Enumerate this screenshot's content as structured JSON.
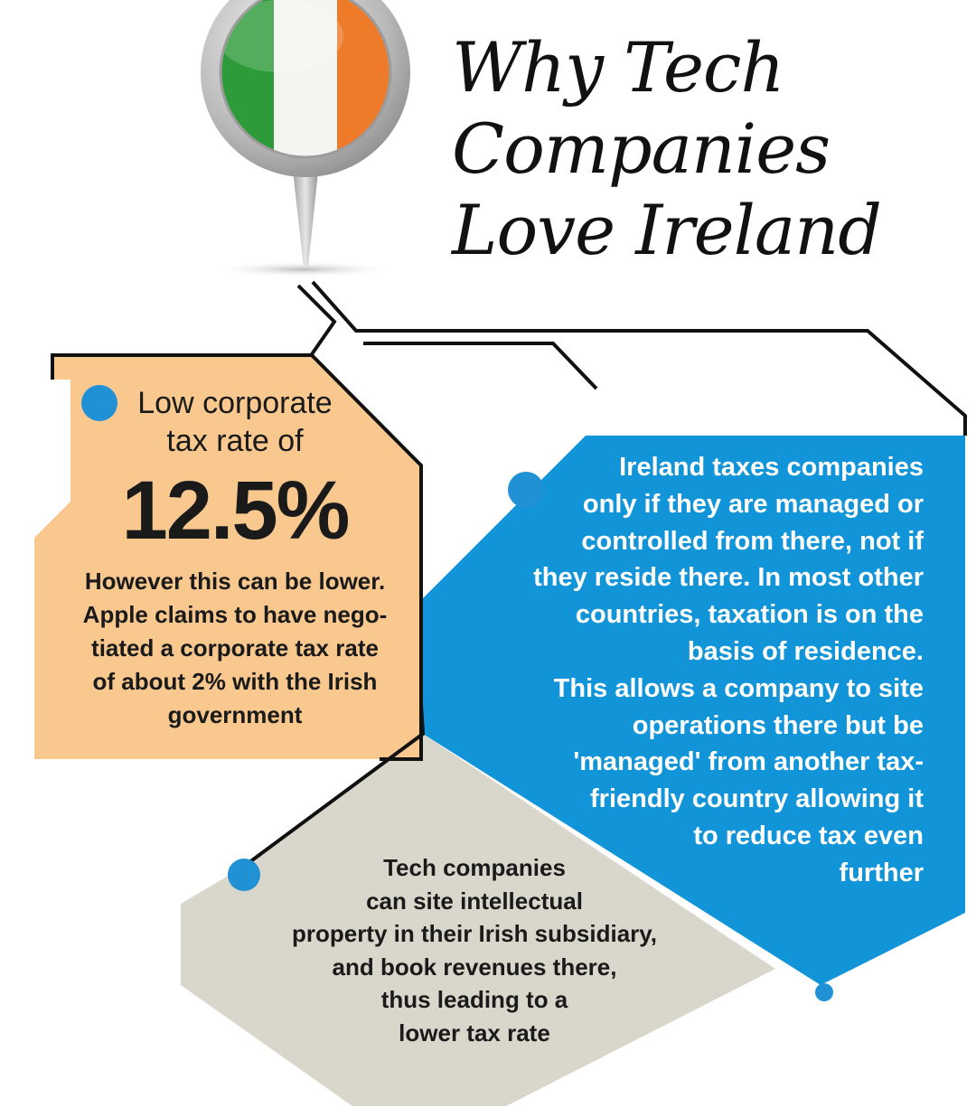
{
  "title": {
    "lines": [
      "Why Tech",
      "Companies",
      "Love Ireland"
    ]
  },
  "panel_rate": {
    "lead_lines": [
      "Low corporate",
      "tax rate of"
    ],
    "rate": "12.5%",
    "note_lines": [
      "However this can be lower.",
      "Apple claims to have nego-",
      "tiated a corporate tax rate",
      "of about 2% with the Irish",
      "government"
    ]
  },
  "panel_management": {
    "lines": [
      "Ireland taxes companies",
      "only if they are managed or",
      "controlled from there, not if",
      "they reside there. In most other",
      "countries, taxation is on the",
      "basis of residence.",
      "This allows a company to site",
      "operations there but be",
      "'managed'  from another tax-",
      "friendly country allowing it",
      "to  reduce tax even",
      "further"
    ]
  },
  "panel_ip": {
    "lines": [
      "Tech companies",
      "can site intellectual",
      "property in their Irish subsidiary,",
      "and book revenues there,",
      "thus leading to a",
      "lower tax rate"
    ]
  },
  "colors": {
    "flag_green": "#2e9b3a",
    "flag_white": "#f4f4f0",
    "flag_orange": "#ee7b2a",
    "panel_orange": "#f8c88f",
    "panel_blue": "#1295d8",
    "panel_grey": "#d9d6cb",
    "bullet_blue": "#2191d6",
    "line_dark": "#111111"
  },
  "icons": [
    "ireland-flag-map-pin-icon",
    "bullet-dot-icon"
  ]
}
